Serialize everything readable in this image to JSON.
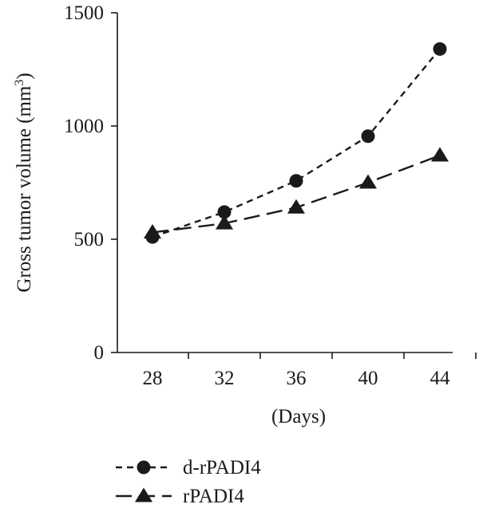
{
  "chart_data": {
    "type": "line",
    "title": "",
    "xlabel": "(Days)",
    "ylabel": "Gross tumor volume (mm3)",
    "ylabel_main": "Gross tumor volume (mm",
    "ylabel_sup": "3",
    "ylabel_close": ")",
    "x": [
      28,
      32,
      36,
      40,
      44
    ],
    "x_ticks": [
      "28",
      "32",
      "36",
      "40",
      "44"
    ],
    "y_ticks": [
      "0",
      "500",
      "1000",
      "1500"
    ],
    "ylim": [
      0,
      1500
    ],
    "grid": false,
    "legend_position": "bottom-left",
    "series": [
      {
        "name": "d-rPADI4",
        "marker": "circle",
        "line_style": "dashed",
        "values": [
          510,
          620,
          758,
          955,
          1340
        ]
      },
      {
        "name": "rPADI4",
        "marker": "triangle",
        "line_style": "long-dash",
        "values": [
          530,
          570,
          640,
          750,
          870
        ]
      }
    ],
    "colors": {
      "ink": "#1a1a1a",
      "background": "#ffffff"
    }
  }
}
